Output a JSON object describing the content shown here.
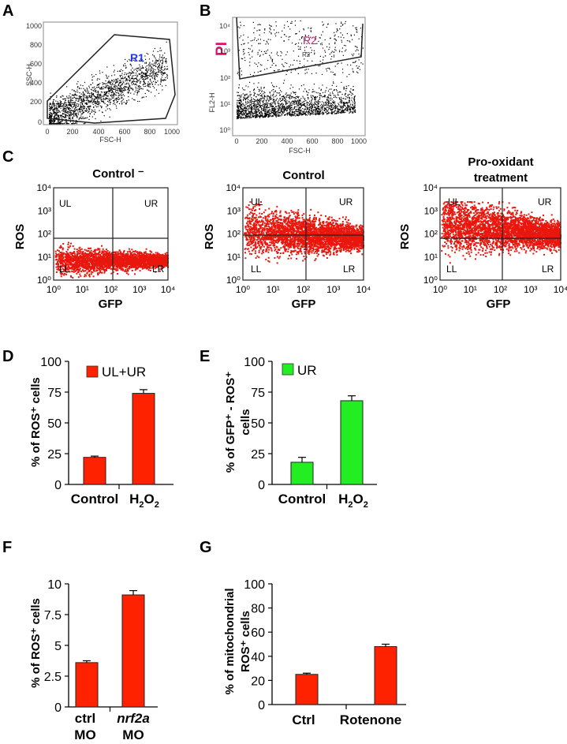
{
  "panel_labels": {
    "a": "A",
    "b": "B",
    "c": "C",
    "d": "D",
    "e": "E",
    "f": "F",
    "g": "G"
  },
  "colors": {
    "bar_red": "#ff2200",
    "bar_green": "#22ee22",
    "scatter_red": "#e8170d",
    "dot_black": "#000000",
    "r1_label": "#2233ff",
    "r2_label": "#e0116a",
    "pi_label": "#e0116a"
  },
  "panelA": {
    "ylabel": "SSC-H",
    "xlabel": "FSC-H",
    "gate": "R1",
    "yticks": [
      "1000",
      "800",
      "600",
      "400",
      "200",
      "0"
    ],
    "xticks": [
      "0",
      "200",
      "400",
      "600",
      "800",
      "1000"
    ]
  },
  "panelB": {
    "ylabel": "FL2-H",
    "xlabel": "FSC-H",
    "gate": "R2",
    "gate_small": "R2",
    "channel": "PI",
    "yticks": [
      "10⁴",
      "10³",
      "10²",
      "10¹",
      "10⁰"
    ],
    "xticks": [
      "0",
      "200",
      "400",
      "600",
      "800",
      "1000"
    ]
  },
  "panelC": {
    "quadrants": {
      "ul": "UL",
      "ur": "UR",
      "ll": "LL",
      "lr": "LR"
    },
    "ylabel": "ROS",
    "xlabel": "GFP",
    "plot1_title": "Control ⁻",
    "plot2_title": "Control",
    "plot3_title_line1": "Pro-oxidant",
    "plot3_title_line2": "treatment"
  },
  "chart_data": [
    {
      "id": "D",
      "type": "bar",
      "categories": [
        "Control",
        "H2O2"
      ],
      "values": [
        22,
        74
      ],
      "errors": [
        1,
        3
      ],
      "ylabel": "% of ROS⁺ cells",
      "ylim": [
        0,
        100
      ],
      "yticks": [
        "0",
        "25",
        "50",
        "75",
        "100"
      ],
      "legend": "UL+UR",
      "color": "#ff2200"
    },
    {
      "id": "E",
      "type": "bar",
      "categories": [
        "Control",
        "H2O2"
      ],
      "values": [
        18,
        68
      ],
      "errors": [
        4,
        4
      ],
      "ylabel_line1": "% of GFP⁺ - ROS⁺",
      "ylabel_line2": "cells",
      "ylim": [
        0,
        100
      ],
      "yticks": [
        "0",
        "25",
        "50",
        "75",
        "100"
      ],
      "legend": "UR",
      "color": "#22ee22"
    },
    {
      "id": "F",
      "type": "bar",
      "categories": [
        "ctrl MO",
        "nrf2a MO"
      ],
      "values": [
        3.6,
        9.1
      ],
      "errors": [
        0.15,
        0.35
      ],
      "ylabel": "% of ROS⁺ cells",
      "ylim": [
        0,
        10
      ],
      "yticks": [
        "0",
        "2.5",
        "5",
        "7.5",
        "10"
      ],
      "color": "#ff2200"
    },
    {
      "id": "G",
      "type": "bar",
      "categories": [
        "Ctrl",
        "Rotenone"
      ],
      "values": [
        25,
        48
      ],
      "errors": [
        1,
        2
      ],
      "ylabel_line1": "% of mitochondrial",
      "ylabel_line2": "ROS⁺ cells",
      "ylim": [
        0,
        100
      ],
      "yticks": [
        "0",
        "20",
        "40",
        "60",
        "80",
        "100"
      ],
      "color": "#ff2200"
    }
  ],
  "labels": {
    "d_cat1": "Control",
    "d_cat2_main": "H",
    "d_cat2_sub1": "2",
    "d_cat2_o": "O",
    "d_cat2_sub2": "2",
    "e_cat1": "Control",
    "e_cat2_main": "H",
    "e_cat2_sub1": "2",
    "e_cat2_o": "O",
    "e_cat2_sub2": "2",
    "f_cat1_l1": "ctrl",
    "f_cat1_l2": "MO",
    "f_cat2_l1": "nrf2a",
    "f_cat2_l2": "MO",
    "g_cat1": "Ctrl",
    "g_cat2": "Rotenone"
  }
}
